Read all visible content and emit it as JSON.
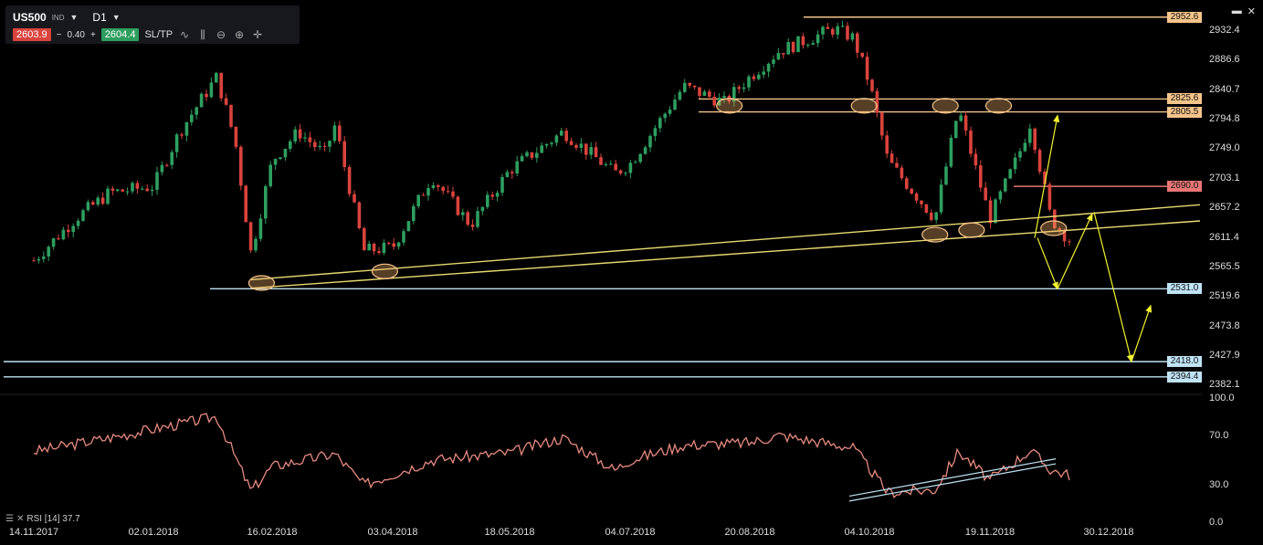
{
  "toolbar": {
    "symbol": "US500",
    "symbol_type": "IND",
    "timeframe": "D1",
    "bid": "2603.9",
    "spread_minus": "−",
    "spread": "0.40",
    "spread_plus": "+",
    "ask": "2604.4",
    "sltp_label": "SL/TP",
    "icons": [
      "line-chart-icon",
      "candles-icon",
      "zoom-out-icon",
      "zoom-in-icon",
      "crosshair-icon"
    ]
  },
  "window_controls": {
    "minimize": "▬",
    "close": "✕"
  },
  "colors": {
    "background": "#000000",
    "up_candle": "#2e9e5f",
    "down_candle": "#d9433d",
    "orange_line": "#f5c48a",
    "yellow_line": "#e8d870",
    "blue_line": "#bfe3f5",
    "red_line": "#e87575",
    "rsi_line": "#e88a80",
    "annotation_arrow": "#f2f230"
  },
  "chart_data": {
    "type": "candlestick",
    "symbol": "US500",
    "timeframe": "D1",
    "y_axis_ticks": [
      "2932.4",
      "2886.6",
      "2840.7",
      "2794.8",
      "2749.0",
      "2703.1",
      "2657.2",
      "2611.4",
      "2565.5",
      "2519.6",
      "2473.8",
      "2427.9",
      "2382.1"
    ],
    "ylim": [
      2370,
      2965
    ],
    "x_axis_ticks": [
      "14.11.2017",
      "02.01.2018",
      "16.02.2018",
      "03.04.2018",
      "18.05.2018",
      "04.07.2018",
      "20.08.2018",
      "04.10.2018",
      "19.11.2018",
      "30.12.2018"
    ],
    "close_series": [
      {
        "date": "14.11.2017",
        "close": 2575
      },
      {
        "date": "01.12.2017",
        "close": 2640
      },
      {
        "date": "15.12.2017",
        "close": 2680
      },
      {
        "date": "02.01.2018",
        "close": 2690
      },
      {
        "date": "12.01.2018",
        "close": 2775
      },
      {
        "date": "26.01.2018",
        "close": 2860
      },
      {
        "date": "02.02.2018",
        "close": 2760
      },
      {
        "date": "08.02.2018",
        "close": 2585
      },
      {
        "date": "16.02.2018",
        "close": 2730
      },
      {
        "date": "26.02.2018",
        "close": 2775
      },
      {
        "date": "08.03.2018",
        "close": 2740
      },
      {
        "date": "12.03.2018",
        "close": 2785
      },
      {
        "date": "23.03.2018",
        "close": 2590
      },
      {
        "date": "03.04.2018",
        "close": 2595
      },
      {
        "date": "18.04.2018",
        "close": 2705
      },
      {
        "date": "03.05.2018",
        "close": 2630
      },
      {
        "date": "18.05.2018",
        "close": 2715
      },
      {
        "date": "08.06.2018",
        "close": 2775
      },
      {
        "date": "28.06.2018",
        "close": 2710
      },
      {
        "date": "04.07.2018",
        "close": 2725
      },
      {
        "date": "25.07.2018",
        "close": 2845
      },
      {
        "date": "10.08.2018",
        "close": 2820
      },
      {
        "date": "20.08.2018",
        "close": 2860
      },
      {
        "date": "31.08.2018",
        "close": 2900
      },
      {
        "date": "21.09.2018",
        "close": 2935
      },
      {
        "date": "28.09.2018",
        "close": 2920
      },
      {
        "date": "04.10.2018",
        "close": 2850
      },
      {
        "date": "11.10.2018",
        "close": 2730
      },
      {
        "date": "29.10.2018",
        "close": 2640
      },
      {
        "date": "07.11.2018",
        "close": 2810
      },
      {
        "date": "19.11.2018",
        "close": 2640
      },
      {
        "date": "29.11.2018",
        "close": 2740
      },
      {
        "date": "03.12.2018",
        "close": 2790
      },
      {
        "date": "10.12.2018",
        "close": 2640
      },
      {
        "date": "17.12.2018",
        "close": 2604
      }
    ],
    "horizontal_levels": [
      {
        "label": "2952.6",
        "value": 2952.6,
        "color": "orange"
      },
      {
        "label": "2825.6",
        "value": 2825.6,
        "color": "orange"
      },
      {
        "label": "2805.5",
        "value": 2805.5,
        "color": "orange"
      },
      {
        "label": "2690.0",
        "value": 2690.0,
        "color": "red"
      },
      {
        "label": "2531.0",
        "value": 2531.0,
        "color": "blue"
      },
      {
        "label": "2418.0",
        "value": 2418.0,
        "color": "blue"
      },
      {
        "label": "2394.4",
        "value": 2394.4,
        "color": "blue"
      }
    ],
    "trend_channel": {
      "upper": [
        {
          "date": "08.02.2018",
          "value": 2545
        },
        {
          "date": "30.12.2018",
          "value": 2650
        }
      ],
      "lower": [
        {
          "date": "08.02.2018",
          "value": 2532
        },
        {
          "date": "30.12.2018",
          "value": 2625
        }
      ]
    },
    "rsi": {
      "label": "RSI [14] 37.7",
      "period": 14,
      "value": 37.7,
      "ticks": [
        "100.0",
        "70.0",
        "30.0",
        "0.0"
      ],
      "ylim": [
        0,
        100
      ],
      "series": [
        {
          "date": "14.11.2017",
          "value": 57
        },
        {
          "date": "15.12.2017",
          "value": 68
        },
        {
          "date": "26.01.2018",
          "value": 85
        },
        {
          "date": "08.02.2018",
          "value": 25
        },
        {
          "date": "16.02.2018",
          "value": 45
        },
        {
          "date": "12.03.2018",
          "value": 55
        },
        {
          "date": "23.03.2018",
          "value": 30
        },
        {
          "date": "18.04.2018",
          "value": 50
        },
        {
          "date": "18.05.2018",
          "value": 56
        },
        {
          "date": "08.06.2018",
          "value": 68
        },
        {
          "date": "28.06.2018",
          "value": 42
        },
        {
          "date": "04.07.2018",
          "value": 50
        },
        {
          "date": "25.07.2018",
          "value": 62
        },
        {
          "date": "20.08.2018",
          "value": 64
        },
        {
          "date": "31.08.2018",
          "value": 70
        },
        {
          "date": "28.09.2018",
          "value": 60
        },
        {
          "date": "11.10.2018",
          "value": 24
        },
        {
          "date": "29.10.2018",
          "value": 26
        },
        {
          "date": "07.11.2018",
          "value": 57
        },
        {
          "date": "19.11.2018",
          "value": 34
        },
        {
          "date": "03.12.2018",
          "value": 58
        },
        {
          "date": "10.12.2018",
          "value": 42
        },
        {
          "date": "17.12.2018",
          "value": 37.7
        }
      ]
    }
  }
}
